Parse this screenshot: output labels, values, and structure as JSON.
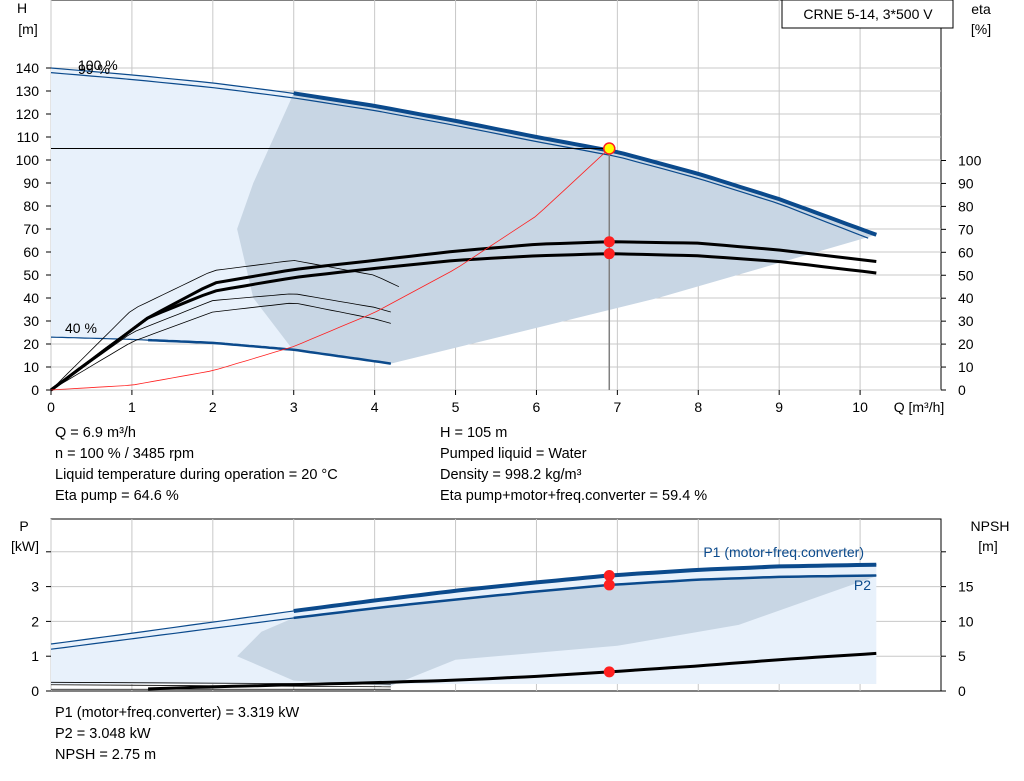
{
  "chart_data": [
    {
      "type": "line",
      "title": "CRNE 5-14, 3*500 V",
      "xlabel": "Q [m³/h]",
      "ylabel": "H [m]",
      "y2label": "eta [%]",
      "xlim": [
        0,
        11
      ],
      "ylim": [
        0,
        150
      ],
      "y2lim": [
        0,
        100
      ],
      "xticks": [
        "0",
        "1",
        "2",
        "3",
        "4",
        "5",
        "6",
        "7",
        "8",
        "9",
        "10"
      ],
      "yticks": [
        "0",
        "10",
        "20",
        "30",
        "40",
        "50",
        "60",
        "70",
        "80",
        "90",
        "100",
        "110",
        "120",
        "130",
        "140"
      ],
      "y2ticks": [
        "0",
        "10",
        "20",
        "30",
        "40",
        "50",
        "60",
        "70",
        "80",
        "90",
        "100"
      ],
      "grid": true,
      "speed_labels": [
        "100 %",
        "99 %",
        "40 %"
      ],
      "series": [
        {
          "name": "H 100 %",
          "color": "#0b4a8c",
          "x": [
            0,
            1,
            2,
            3,
            4,
            5,
            6,
            7,
            8,
            9,
            10.2
          ],
          "y": [
            140,
            137,
            133.5,
            129,
            123.5,
            117,
            110,
            103.5,
            94,
            83,
            67.5
          ]
        },
        {
          "name": "H 99 %",
          "color": "#0b4a8c",
          "x": [
            0,
            1,
            2,
            3,
            4,
            5,
            6,
            7,
            8,
            9,
            10.1
          ],
          "y": [
            138,
            135,
            131.5,
            127,
            121.5,
            115,
            108,
            101.5,
            92,
            81,
            66
          ]
        },
        {
          "name": "H 40 %",
          "color": "#0b4a8c",
          "x": [
            0,
            1,
            2,
            3,
            4.2
          ],
          "y": [
            23,
            22,
            20.5,
            17.5,
            11.5
          ]
        },
        {
          "name": "Eta pump",
          "color": "#000000",
          "x": [
            0,
            1.2,
            2,
            3,
            4,
            5,
            6,
            6.9,
            8,
            9,
            10.2
          ],
          "y": [
            0,
            31.5,
            46.5,
            52.5,
            56.5,
            60.5,
            63.5,
            64.6,
            64,
            61,
            56
          ]
        },
        {
          "name": "Eta pump+motor+freq.converter",
          "color": "#000000",
          "x": [
            0,
            1.2,
            2,
            3,
            4,
            5,
            6,
            6.9,
            8,
            9,
            10.2
          ],
          "y": [
            0,
            31.5,
            43,
            49,
            53,
            56.5,
            58.5,
            59.4,
            58.5,
            56,
            51
          ]
        },
        {
          "name": "System curve",
          "color": "#ff3030",
          "x": [
            0,
            1,
            2,
            3,
            4,
            5,
            6,
            6.9
          ],
          "y": [
            0,
            2.1,
            8.4,
            18.9,
            33.7,
            52.6,
            75.7,
            105
          ]
        }
      ],
      "duty_point": {
        "Q": 6.9,
        "H": 105,
        "eta_pump": 64.6,
        "eta_total": 59.4
      }
    },
    {
      "type": "line",
      "ylabel": "P [kW]",
      "y2label": "NPSH [m]",
      "xlim": [
        0,
        11
      ],
      "ylim": [
        0,
        4.3
      ],
      "y2lim": [
        0,
        21.5
      ],
      "yticks": [
        "0",
        "1",
        "2",
        "3"
      ],
      "y2ticks": [
        "0",
        "5",
        "10",
        "15"
      ],
      "grid": true,
      "series": [
        {
          "name": "P1 (motor+freq.converter)",
          "color": "#0b4a8c",
          "x": [
            0,
            1,
            2,
            3,
            4,
            5,
            6,
            6.9,
            8,
            9,
            10.2
          ],
          "y": [
            1.35,
            1.66,
            1.98,
            2.3,
            2.6,
            2.88,
            3.12,
            3.32,
            3.48,
            3.58,
            3.63
          ]
        },
        {
          "name": "P2",
          "color": "#0b4a8c",
          "x": [
            0,
            1,
            2,
            3,
            4,
            5,
            6,
            6.9,
            8,
            9,
            10.2
          ],
          "y": [
            1.2,
            1.5,
            1.8,
            2.1,
            2.38,
            2.63,
            2.86,
            3.048,
            3.2,
            3.28,
            3.32
          ]
        },
        {
          "name": "NPSH",
          "color": "#000000",
          "axis": "right",
          "x": [
            1.2,
            2,
            3,
            4,
            5,
            6,
            6.9,
            8,
            9,
            10.2
          ],
          "y": [
            0.3,
            0.6,
            0.9,
            1.2,
            1.55,
            2.1,
            2.75,
            3.6,
            4.5,
            5.4
          ]
        }
      ],
      "duty_point": {
        "P1": 3.319,
        "P2": 3.048,
        "NPSH": 2.75
      }
    }
  ],
  "colors": {
    "curve": "#0b4a8c",
    "area_dark": "#c8d6e4",
    "area_light": "#e8f1fb",
    "duty_point": "#ff2020",
    "grid": "#c8c8c8"
  },
  "info_top_left": [
    "Q = 6.9 m³/h",
    "n = 100 % / 3485 rpm",
    "Liquid temperature during operation = 20 °C",
    "Eta pump = 64.6 %"
  ],
  "info_top_right": [
    "H = 105 m",
    "Pumped liquid = Water",
    "Density = 998.2 kg/m³",
    "Eta pump+motor+freq.converter = 59.4 %"
  ],
  "info_bottom": [
    "P1 (motor+freq.converter) = 3.319 kW",
    "P2 = 3.048 kW",
    "NPSH = 2.75 m"
  ]
}
